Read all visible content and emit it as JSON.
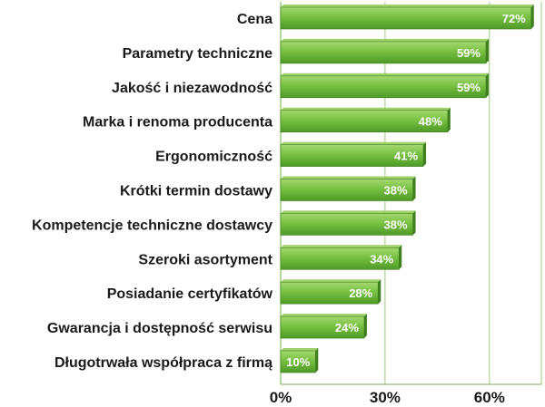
{
  "chart_data": {
    "type": "bar",
    "orientation": "horizontal",
    "categories": [
      "Cena",
      "Parametry techniczne",
      "Jakość i niezawodność",
      "Marka i renoma producenta",
      "Ergonomiczność",
      "Krótki termin dostawy",
      "Kompetencje techniczne dostawcy",
      "Szeroki asortyment",
      "Posiadanie certyfikatów",
      "Gwarancja i dostępność serwisu",
      "Długotrwała współpraca z firmą"
    ],
    "values": [
      72,
      59,
      59,
      48,
      41,
      38,
      38,
      34,
      28,
      24,
      10
    ],
    "value_labels": [
      "72%",
      "59%",
      "59%",
      "48%",
      "41%",
      "38%",
      "38%",
      "34%",
      "28%",
      "24%",
      "10%"
    ],
    "xlim": [
      0,
      75
    ],
    "xticks": [
      0,
      30,
      60
    ],
    "xtick_labels": [
      "0%",
      "30%",
      "60%"
    ],
    "grid": "vertical",
    "title": "",
    "xlabel": "",
    "ylabel": "",
    "colors": {
      "bar": "#6cb83a",
      "bar_light": "#9ed26a",
      "bar_dark": "#3f7f1e",
      "grid": "#9ccc7a",
      "axis": "#7aa860"
    }
  }
}
